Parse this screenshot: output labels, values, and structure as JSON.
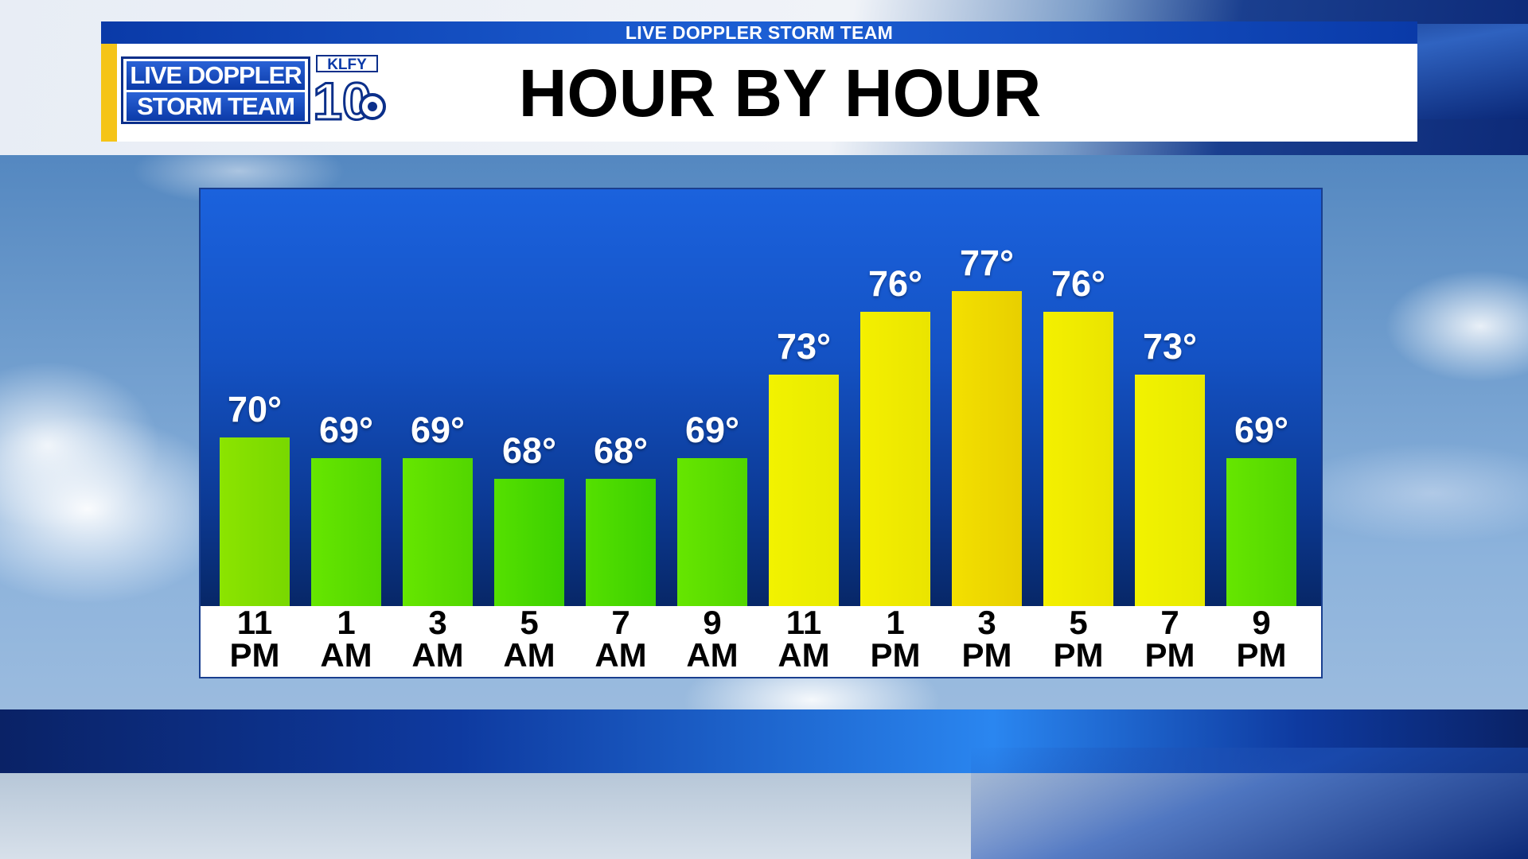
{
  "header": {
    "strip_text": "LIVE DOPPLER STORM TEAM",
    "title": "HOUR BY HOUR"
  },
  "logo": {
    "line1": "LIVE DOPPLER",
    "line2": "STORM TEAM",
    "station_call": "KLFY",
    "channel": "10"
  },
  "chart_data": {
    "type": "bar",
    "title": "HOUR BY HOUR",
    "categories": [
      [
        "11",
        "PM"
      ],
      [
        "1",
        "AM"
      ],
      [
        "3",
        "AM"
      ],
      [
        "5",
        "AM"
      ],
      [
        "7",
        "AM"
      ],
      [
        "9",
        "AM"
      ],
      [
        "11",
        "AM"
      ],
      [
        "1",
        "PM"
      ],
      [
        "3",
        "PM"
      ],
      [
        "5",
        "PM"
      ],
      [
        "7",
        "PM"
      ],
      [
        "9",
        "PM"
      ]
    ],
    "values": [
      70,
      69,
      69,
      68,
      68,
      69,
      73,
      76,
      77,
      76,
      73,
      69
    ],
    "value_labels": [
      "70°",
      "69°",
      "69°",
      "68°",
      "68°",
      "69°",
      "73°",
      "76°",
      "77°",
      "76°",
      "73°",
      "69°"
    ],
    "unit": "°F",
    "legend": false,
    "grid": false,
    "colors": {
      "68": [
        "#55e000",
        "#3cd000"
      ],
      "69": [
        "#66e600",
        "#52d600"
      ],
      "70": [
        "#8ce400",
        "#78d800"
      ],
      "73": [
        "#f2f200",
        "#e8ea00"
      ],
      "76": [
        "#f4f000",
        "#eae400"
      ],
      "77": [
        "#f3e000",
        "#e8cf00"
      ]
    }
  },
  "colors": {
    "header_blue": "#0a3aa8",
    "accent_yellow": "#f5c417",
    "plot_top": "#1b62dd",
    "plot_bottom": "#072767"
  }
}
